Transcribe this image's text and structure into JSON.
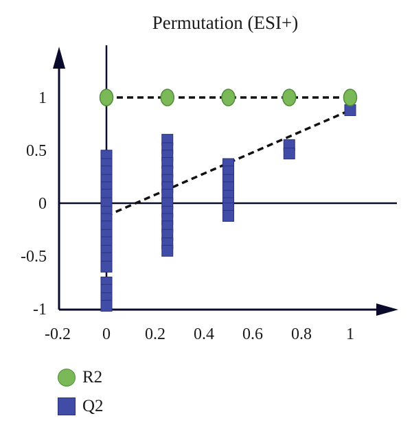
{
  "chart_data": {
    "type": "scatter",
    "title": "Permutation (ESI+)",
    "xlabel": "",
    "ylabel": "",
    "xlim": [
      -0.2,
      1.2
    ],
    "ylim": [
      -1,
      1.5
    ],
    "x_ticks": [
      "-0.2",
      "0",
      "0.2",
      "0.4",
      "0.6",
      "0.8",
      "1"
    ],
    "x_tick_values": [
      -0.2,
      0,
      0.2,
      0.4,
      0.6,
      0.8,
      1
    ],
    "y_ticks": [
      "-1",
      "-0.5",
      "0",
      "0.5",
      "1"
    ],
    "y_tick_values": [
      -1,
      -0.5,
      0,
      0.5,
      1
    ],
    "legend_position": "bottom-left",
    "series": [
      {
        "name": "R2",
        "marker": "circle",
        "color": "#7bb858",
        "points": [
          {
            "x": 0,
            "y": 1.0
          },
          {
            "x": 0.25,
            "y": 1.0
          },
          {
            "x": 0.5,
            "y": 1.0
          },
          {
            "x": 0.75,
            "y": 1.0
          },
          {
            "x": 1,
            "y": 1.0
          }
        ],
        "trend": {
          "x": [
            0,
            1
          ],
          "y": [
            1.0,
            1.0
          ]
        }
      },
      {
        "name": "Q2",
        "marker": "square",
        "color": "#414ca6",
        "points": [
          {
            "x": 0,
            "y": 0.45
          },
          {
            "x": 0,
            "y": 0.37
          },
          {
            "x": 0,
            "y": 0.3
          },
          {
            "x": 0,
            "y": 0.22
          },
          {
            "x": 0,
            "y": 0.15
          },
          {
            "x": 0,
            "y": 0.08
          },
          {
            "x": 0,
            "y": 0.0
          },
          {
            "x": 0,
            "y": -0.08
          },
          {
            "x": 0,
            "y": -0.15
          },
          {
            "x": 0,
            "y": -0.22
          },
          {
            "x": 0,
            "y": -0.3
          },
          {
            "x": 0,
            "y": -0.37
          },
          {
            "x": 0,
            "y": -0.45
          },
          {
            "x": 0,
            "y": -0.52
          },
          {
            "x": 0,
            "y": -0.6
          },
          {
            "x": 0,
            "y": -0.75
          },
          {
            "x": 0,
            "y": -0.82
          },
          {
            "x": 0,
            "y": -0.9
          },
          {
            "x": 0,
            "y": -0.97
          },
          {
            "x": 0.25,
            "y": 0.6
          },
          {
            "x": 0.25,
            "y": 0.52
          },
          {
            "x": 0.25,
            "y": 0.45
          },
          {
            "x": 0.25,
            "y": 0.38
          },
          {
            "x": 0.25,
            "y": 0.3
          },
          {
            "x": 0.25,
            "y": 0.22
          },
          {
            "x": 0.25,
            "y": 0.15
          },
          {
            "x": 0.25,
            "y": 0.08
          },
          {
            "x": 0.25,
            "y": 0.0
          },
          {
            "x": 0.25,
            "y": -0.08
          },
          {
            "x": 0.25,
            "y": -0.15
          },
          {
            "x": 0.25,
            "y": -0.22
          },
          {
            "x": 0.25,
            "y": -0.3
          },
          {
            "x": 0.25,
            "y": -0.38
          },
          {
            "x": 0.25,
            "y": -0.45
          },
          {
            "x": 0.5,
            "y": 0.37
          },
          {
            "x": 0.5,
            "y": 0.3
          },
          {
            "x": 0.5,
            "y": 0.22
          },
          {
            "x": 0.5,
            "y": 0.15
          },
          {
            "x": 0.5,
            "y": 0.07
          },
          {
            "x": 0.5,
            "y": 0.0
          },
          {
            "x": 0.5,
            "y": -0.05
          },
          {
            "x": 0.5,
            "y": -0.12
          },
          {
            "x": 0.75,
            "y": 0.55
          },
          {
            "x": 0.75,
            "y": 0.47
          },
          {
            "x": 1,
            "y": 0.88
          }
        ],
        "trend": {
          "x": [
            0,
            1
          ],
          "y": [
            -0.12,
            0.88
          ]
        }
      }
    ]
  }
}
